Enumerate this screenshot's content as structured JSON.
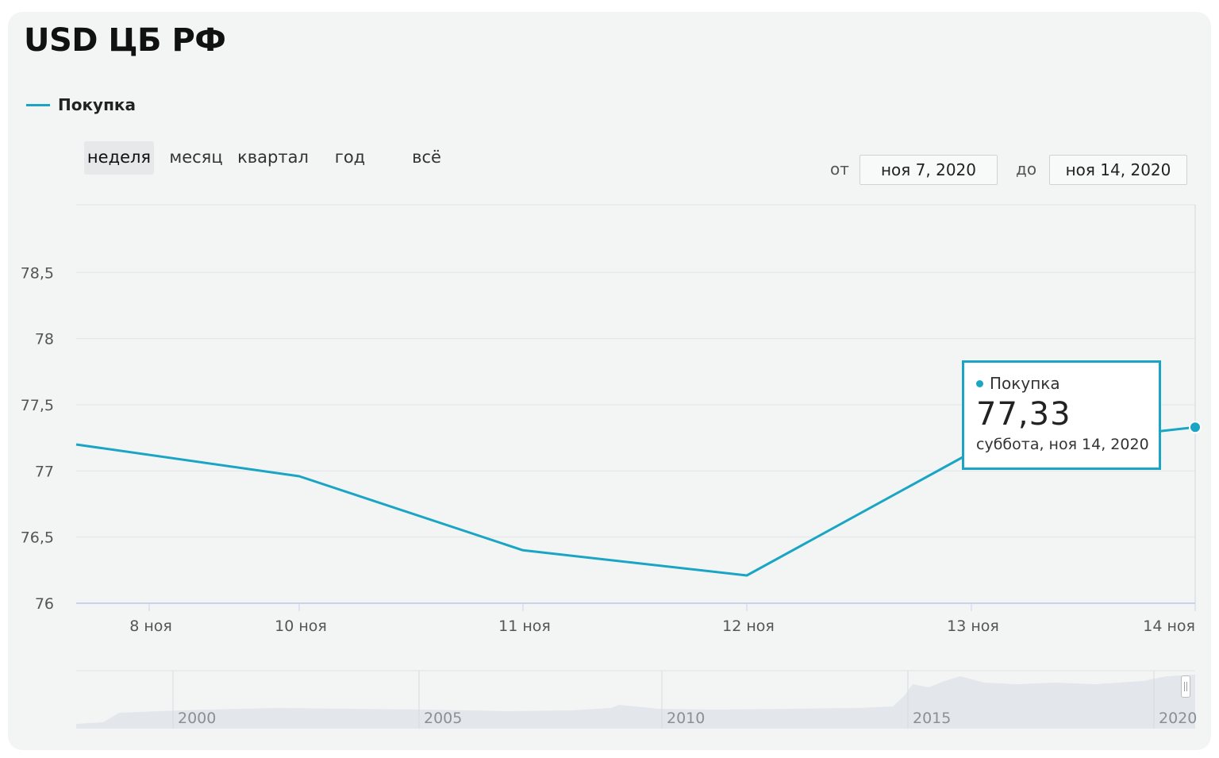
{
  "title": "USD ЦБ РФ",
  "legend": {
    "label": "Покупка",
    "color": "#1aa5c5"
  },
  "periods": [
    {
      "key": "week",
      "label": "неделя",
      "active": true
    },
    {
      "key": "month",
      "label": "месяц",
      "active": false
    },
    {
      "key": "quarter",
      "label": "квартал",
      "active": false
    },
    {
      "key": "year",
      "label": "год",
      "active": false
    },
    {
      "key": "all",
      "label": "всё",
      "active": false
    }
  ],
  "range": {
    "from_label": "от",
    "from_value": "ноя 7, 2020",
    "to_label": "до",
    "to_value": "ноя 14, 2020"
  },
  "tooltip": {
    "series": "Покупка",
    "value": "77,33",
    "date": "суббота, ноя 14, 2020"
  },
  "chart_data": {
    "type": "line",
    "title": "USD ЦБ РФ",
    "series": [
      {
        "name": "Покупка",
        "color": "#1aa5c5",
        "points": [
          {
            "x": "2020-11-07",
            "y": 77.2
          },
          {
            "x": "2020-11-10",
            "y": 76.96
          },
          {
            "x": "2020-11-11",
            "y": 76.4
          },
          {
            "x": "2020-11-12",
            "y": 76.21
          },
          {
            "x": "2020-11-13",
            "y": 77.14
          },
          {
            "x": "2020-11-14",
            "y": 77.33
          }
        ]
      }
    ],
    "x_ticks": [
      {
        "x": "2020-11-08",
        "label": "8 ноя"
      },
      {
        "x": "2020-11-10",
        "label": "10 ноя"
      },
      {
        "x": "2020-11-11",
        "label": "11 ноя"
      },
      {
        "x": "2020-11-12",
        "label": "12 ноя"
      },
      {
        "x": "2020-11-13",
        "label": "13 ноя"
      },
      {
        "x": "2020-11-14",
        "label": "14 ноя"
      }
    ],
    "y_ticks": [
      {
        "value": 76,
        "label": "76"
      },
      {
        "value": 76.5,
        "label": "76,5"
      },
      {
        "value": 77,
        "label": "77"
      },
      {
        "value": 77.5,
        "label": "77,5"
      },
      {
        "value": 78,
        "label": "78"
      },
      {
        "value": 78.5,
        "label": "78,5"
      }
    ],
    "ylim": [
      76,
      79
    ],
    "grid": "horizontal",
    "legend_position": "top-left",
    "highlighted_point": {
      "x": "2020-11-14",
      "y": 77.33
    }
  },
  "navigator": {
    "year_labels": [
      "2000",
      "2005",
      "2010",
      "2015",
      "2020"
    ]
  }
}
